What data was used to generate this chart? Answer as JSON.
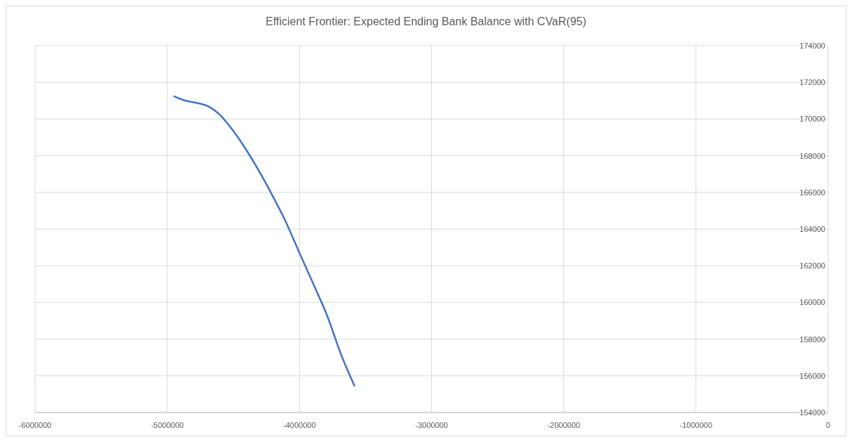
{
  "chart_data": {
    "type": "line",
    "title": "Efficient Frontier:  Expected Ending Bank Balance  with CVaR(95)",
    "series": [
      {
        "color": "#4472c4",
        "x": [
          -4947000,
          -4868000,
          -4763000,
          -4684000,
          -4605000,
          -4526000,
          -4421000,
          -4316000,
          -4211000,
          -4105000,
          -4000000,
          -3895000,
          -3789000,
          -3684000,
          -3584000
        ],
        "values": [
          171240,
          171010,
          170860,
          170670,
          170250,
          169590,
          168520,
          167290,
          165920,
          164420,
          162700,
          161010,
          159250,
          157140,
          155460
        ]
      }
    ],
    "xlim": [
      -6000000,
      0
    ],
    "xticks": [
      -6000000,
      -5000000,
      -4000000,
      -3000000,
      -2000000,
      -1000000,
      0
    ],
    "ylim": [
      154000,
      174000
    ],
    "yticks": [
      154000,
      156000,
      158000,
      160000,
      162000,
      164000,
      166000,
      168000,
      170000,
      172000,
      174000
    ],
    "grid": true,
    "marker": "none",
    "line_style": "solid"
  }
}
